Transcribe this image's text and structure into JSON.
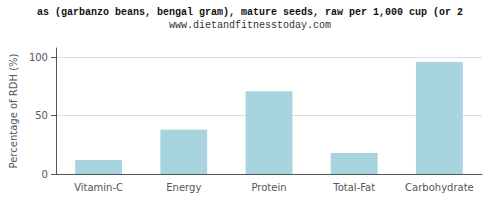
{
  "chart_data": {
    "type": "bar",
    "title": "as (garbanzo beans, bengal gram), mature seeds, raw per 1,000 cup (or 2",
    "subtitle": "www.dietandfitnesstoday.com",
    "categories": [
      "Vitamin-C",
      "Energy",
      "Protein",
      "Total-Fat",
      "Carbohydrate"
    ],
    "values": [
      12,
      38,
      71,
      18,
      96
    ],
    "color": "#a8d4e0",
    "ylabel": "Percentage of RDH (%)",
    "ylim": [
      0,
      108
    ],
    "yticks": [
      0,
      50,
      100
    ],
    "grid": true
  }
}
